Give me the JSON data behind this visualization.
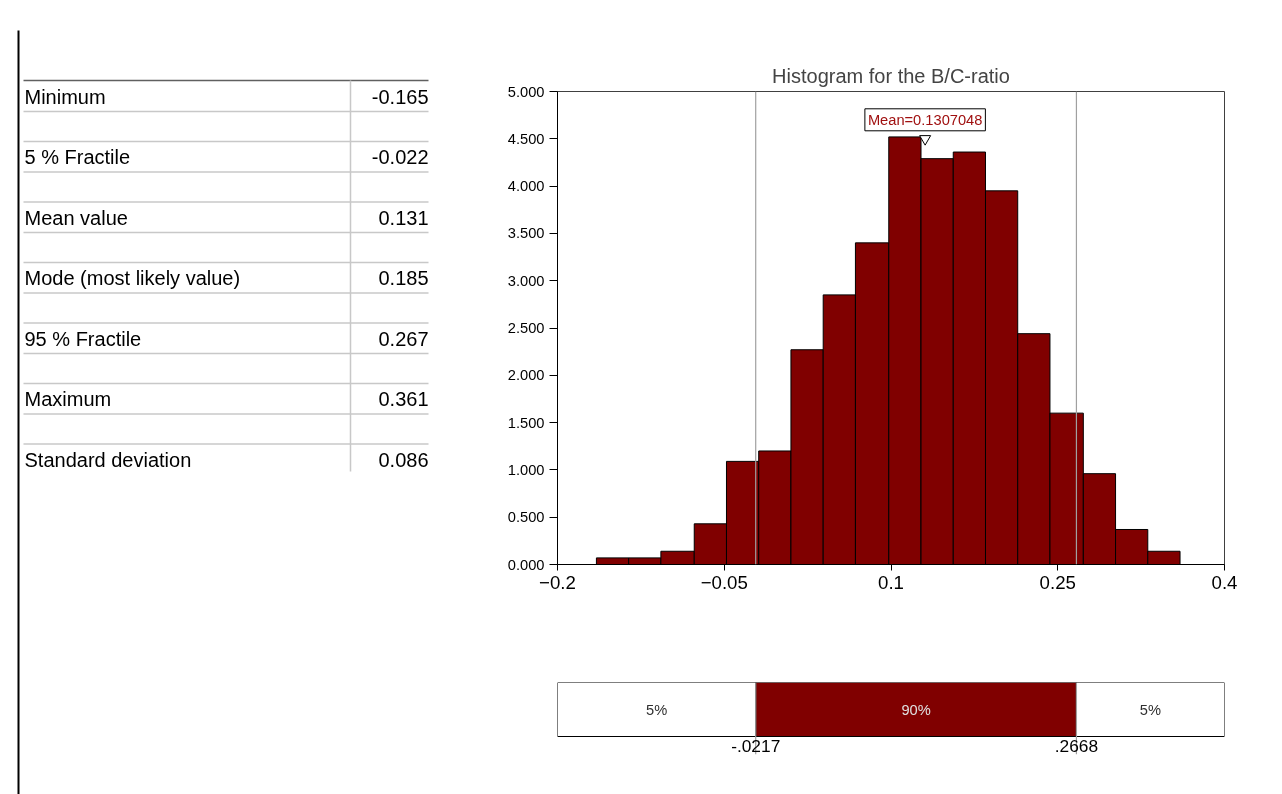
{
  "chart_data": {
    "type": "histogram",
    "title": "Histogram for the B/C-ratio",
    "bins": [
      -0.165,
      -0.136,
      -0.107,
      -0.077,
      -0.048,
      -0.019,
      0.01,
      0.039,
      0.068,
      0.098,
      0.127,
      0.156,
      0.185,
      0.214,
      0.243,
      0.273,
      0.302,
      0.331,
      0.36
    ],
    "values": [
      0.07,
      0.07,
      0.14,
      0.43,
      1.09,
      1.2,
      2.27,
      2.85,
      3.4,
      4.52,
      4.29,
      4.36,
      3.95,
      2.44,
      1.6,
      0.96,
      0.37,
      0.14
    ],
    "color": "#800000",
    "xlim": [
      -0.2,
      0.4
    ],
    "xticks": [
      -0.2,
      -0.05,
      0.1,
      0.25,
      0.4
    ],
    "ylim": [
      0,
      5
    ],
    "yticks": [
      {
        "value": 0,
        "label": "0.000"
      },
      {
        "value": 0.5,
        "label": "0.500"
      },
      {
        "value": 1,
        "label": "1.000"
      },
      {
        "value": 1.5,
        "label": "1.500"
      },
      {
        "value": 2,
        "label": "2.000"
      },
      {
        "value": 2.5,
        "label": "2.500"
      },
      {
        "value": 3,
        "label": "3.000"
      },
      {
        "value": 3.5,
        "label": "3.500"
      },
      {
        "value": 4,
        "label": "4.000"
      },
      {
        "value": 4.5,
        "label": "4.500"
      },
      {
        "value": 5,
        "label": "5.000"
      }
    ],
    "grid": false,
    "ref_lines": [
      {
        "axis": "x",
        "value": -0.0217,
        "color": "#a0a0a0"
      },
      {
        "axis": "x",
        "value": 0.2668,
        "color": "#a0a0a0"
      }
    ],
    "annotations": [
      {
        "text": "Mean=0.1307048",
        "x": 0.1307048,
        "y": 4.5
      },
      "Minimum",
      "-0.165",
      "5 % Fractile",
      "-0.022",
      "Mean value",
      "0.131",
      "Mode (most likely value)",
      "0.185",
      "95 % Fractile",
      "0.267",
      "Maximum",
      "0.361",
      "Standard deviation",
      "0.086",
      "5%",
      "90%",
      "5%",
      "-.0217",
      ".2668"
    ]
  }
}
